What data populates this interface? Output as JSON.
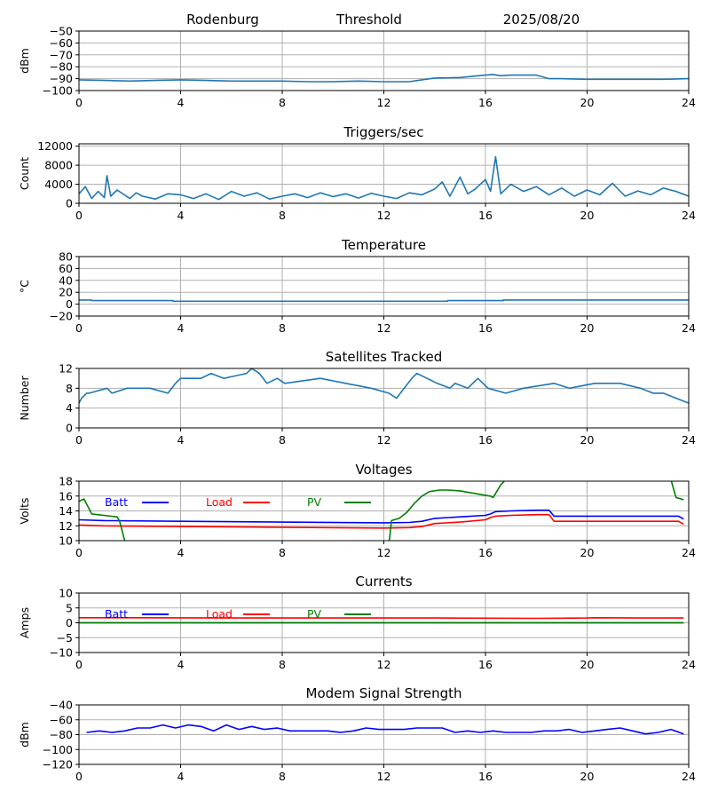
{
  "header": {
    "station": "Rodenburg",
    "mode": "Threshold",
    "date": "2025/08/20"
  },
  "chart_data": [
    {
      "id": "threshold",
      "type": "line",
      "title": "",
      "ylabel": "dBm",
      "x_ticks": [
        0,
        4,
        8,
        12,
        16,
        20,
        24
      ],
      "xlim": [
        0,
        24
      ],
      "ylim": [
        -100,
        -50
      ],
      "y_ticks": [
        -100,
        -90,
        -80,
        -70,
        -60,
        -50
      ],
      "grid": true,
      "series": [
        {
          "color": "#1f77b4",
          "x": [
            0,
            1,
            2,
            3,
            4,
            5,
            6,
            7,
            8,
            9,
            10,
            11,
            12,
            13,
            13.5,
            14,
            15,
            15.5,
            16,
            16.3,
            16.6,
            17,
            18,
            18.5,
            19,
            20,
            21,
            22,
            23,
            24
          ],
          "y": [
            -91,
            -91.5,
            -92,
            -91.5,
            -91,
            -91.5,
            -92,
            -92,
            -92,
            -92.5,
            -92.5,
            -92,
            -92.5,
            -92.5,
            -91,
            -89.5,
            -89,
            -88,
            -87,
            -86.5,
            -87.5,
            -87,
            -87,
            -90,
            -90,
            -90.5,
            -90.5,
            -90.5,
            -90.5,
            -90
          ]
        }
      ]
    },
    {
      "id": "triggers",
      "type": "line",
      "title": "Triggers/sec",
      "ylabel": "Count",
      "x_ticks": [
        0,
        4,
        8,
        12,
        16,
        20,
        24
      ],
      "xlim": [
        0,
        24
      ],
      "ylim": [
        0,
        12500
      ],
      "y_ticks": [
        0,
        4000,
        8000,
        12000
      ],
      "grid": true,
      "series": [
        {
          "color": "#1f77b4",
          "x": [
            0,
            0.25,
            0.5,
            0.75,
            1.0,
            1.1,
            1.25,
            1.5,
            2,
            2.25,
            2.5,
            3,
            3.5,
            4,
            4.5,
            5,
            5.5,
            6,
            6.5,
            7,
            7.5,
            8,
            8.5,
            9,
            9.5,
            10,
            10.5,
            11,
            11.5,
            12,
            12.5,
            13,
            13.5,
            14,
            14.3,
            14.6,
            15,
            15.3,
            15.6,
            16,
            16.2,
            16.4,
            16.6,
            17,
            17.5,
            18,
            18.5,
            19,
            19.5,
            20,
            20.5,
            21,
            21.5,
            22,
            22.5,
            23,
            23.5,
            24
          ],
          "y": [
            2000,
            3500,
            1000,
            2500,
            1200,
            5800,
            1500,
            2800,
            1000,
            2200,
            1500,
            900,
            2000,
            1800,
            1000,
            2000,
            800,
            2500,
            1500,
            2200,
            900,
            1500,
            2000,
            1200,
            2200,
            1400,
            2000,
            1100,
            2100,
            1500,
            1000,
            2200,
            1800,
            3000,
            4500,
            1500,
            5500,
            2000,
            3000,
            5000,
            2500,
            9800,
            2000,
            4000,
            2500,
            3500,
            1800,
            3200,
            1500,
            2800,
            1800,
            4200,
            1500,
            2600,
            1800,
            3200,
            2500,
            1500
          ]
        }
      ]
    },
    {
      "id": "temperature",
      "type": "line",
      "title": "Temperature",
      "ylabel": "°C",
      "x_ticks": [
        0,
        4,
        8,
        12,
        16,
        20,
        24
      ],
      "xlim": [
        0,
        24
      ],
      "ylim": [
        -20,
        80
      ],
      "y_ticks": [
        -20,
        0,
        20,
        40,
        60,
        80
      ],
      "grid": true,
      "series": [
        {
          "color": "#1f77b4",
          "x": [
            0,
            0.5,
            0.5,
            3.7,
            3.7,
            14.5,
            14.5,
            16.7,
            16.7,
            24
          ],
          "y": [
            7,
            7,
            6,
            6,
            5,
            5,
            6,
            6,
            7,
            7
          ]
        }
      ]
    },
    {
      "id": "satellites",
      "type": "line",
      "title": "Satellites Tracked",
      "ylabel": "Number",
      "x_ticks": [
        0,
        4,
        8,
        12,
        16,
        20,
        24
      ],
      "xlim": [
        0,
        24
      ],
      "ylim": [
        0,
        12
      ],
      "y_ticks": [
        0,
        4,
        8,
        12
      ],
      "grid": true,
      "series": [
        {
          "color": "#1f77b4",
          "x": [
            0,
            0.1,
            0.3,
            0.4,
            1.1,
            1.3,
            1.9,
            2.8,
            3.5,
            3.8,
            4.0,
            4.3,
            4.8,
            5.2,
            5.7,
            6.6,
            6.8,
            7.1,
            7.4,
            7.8,
            8.1,
            9.5,
            10.5,
            11.5,
            12.2,
            12.5,
            12.8,
            13.1,
            13.3,
            13.7,
            14.1,
            14.6,
            14.8,
            15.3,
            15.7,
            16.1,
            16.8,
            17.5,
            18.7,
            19.3,
            20.3,
            21.3,
            22.1,
            22.6,
            23.0,
            23.5,
            24
          ],
          "y": [
            5,
            6,
            7,
            7,
            8,
            7,
            8,
            8,
            7,
            9,
            10,
            10,
            10,
            11,
            10,
            11,
            12,
            11,
            9,
            10,
            9,
            10,
            9,
            8,
            7,
            6,
            8,
            10,
            11,
            10,
            9,
            8,
            9,
            8,
            10,
            8,
            7,
            8,
            9,
            8,
            9,
            9,
            8,
            7,
            7,
            6,
            5
          ]
        }
      ]
    },
    {
      "id": "voltages",
      "type": "line",
      "title": "Voltages",
      "ylabel": "Volts",
      "x_ticks": [
        0,
        4,
        8,
        12,
        16,
        20,
        24
      ],
      "xlim": [
        0,
        24
      ],
      "ylim": [
        10,
        18
      ],
      "y_ticks": [
        10,
        12,
        14,
        16,
        18
      ],
      "grid": true,
      "legend": {
        "position": "top-left",
        "inline": true
      },
      "series": [
        {
          "name": "Batt",
          "color": "#0000ff",
          "x": [
            0,
            1,
            4,
            8,
            12,
            13,
            13.5,
            14,
            15,
            16,
            16.2,
            16.4,
            17,
            18,
            18.5,
            18.7,
            20,
            22,
            23.6,
            23.8
          ],
          "y": [
            12.8,
            12.7,
            12.6,
            12.5,
            12.4,
            12.45,
            12.6,
            13.0,
            13.2,
            13.4,
            13.6,
            13.9,
            14.0,
            14.1,
            14.1,
            13.3,
            13.3,
            13.3,
            13.3,
            12.9
          ]
        },
        {
          "name": "Load",
          "color": "#ff0000",
          "x": [
            0,
            1,
            4,
            8,
            12,
            13,
            13.5,
            14,
            15,
            16,
            16.2,
            16.4,
            17,
            18,
            18.5,
            18.7,
            20,
            22,
            23.6,
            23.8
          ],
          "y": [
            12.1,
            12.0,
            11.9,
            11.8,
            11.7,
            11.75,
            11.9,
            12.3,
            12.5,
            12.8,
            13.1,
            13.3,
            13.4,
            13.5,
            13.5,
            12.6,
            12.6,
            12.6,
            12.6,
            12.2
          ]
        },
        {
          "name": "PV",
          "color": "#008000",
          "x": [
            0,
            0.2,
            0.5,
            1.5,
            1.6,
            1.8,
            1.85,
            12.2,
            12.3,
            12.6,
            12.9,
            13.2,
            13.5,
            13.8,
            14.2,
            14.5,
            15,
            15.5,
            16,
            16.2,
            16.3,
            16.6,
            16.8,
            23.3,
            23.5,
            23.8
          ],
          "y": [
            15.3,
            15.6,
            13.6,
            13.2,
            12.6,
            10.0,
            9.5,
            9.5,
            12.7,
            13.0,
            13.8,
            15.0,
            16.0,
            16.6,
            16.8,
            16.8,
            16.7,
            16.4,
            16.1,
            16.0,
            15.8,
            17.5,
            18.2,
            18.2,
            15.8,
            15.5
          ]
        }
      ]
    },
    {
      "id": "currents",
      "type": "line",
      "title": "Currents",
      "ylabel": "Amps",
      "x_ticks": [
        0,
        4,
        8,
        12,
        16,
        20,
        24
      ],
      "xlim": [
        0,
        24
      ],
      "ylim": [
        -10,
        10
      ],
      "y_ticks": [
        -10,
        -5,
        0,
        5,
        10
      ],
      "grid": true,
      "legend": {
        "position": "top-left",
        "inline": true
      },
      "series": [
        {
          "name": "Batt",
          "color": "#0000ff",
          "x": [
            0,
            23.8
          ],
          "y": [
            0,
            0
          ]
        },
        {
          "name": "Load",
          "color": "#ff0000",
          "x": [
            0,
            2,
            6,
            10,
            14,
            18,
            20,
            20.3,
            22,
            23.8
          ],
          "y": [
            1.7,
            1.7,
            1.6,
            1.6,
            1.6,
            1.5,
            1.6,
            1.7,
            1.6,
            1.6
          ]
        },
        {
          "name": "PV",
          "color": "#008000",
          "x": [
            0,
            23.8
          ],
          "y": [
            0,
            0
          ]
        }
      ]
    },
    {
      "id": "modem",
      "type": "line",
      "title": "Modem Signal Strength",
      "ylabel": "dBm",
      "x_ticks": [
        0,
        4,
        8,
        12,
        16,
        20,
        24
      ],
      "xlim": [
        0,
        24
      ],
      "ylim": [
        -120,
        -40
      ],
      "y_ticks": [
        -120,
        -100,
        -80,
        -60,
        -40
      ],
      "grid": true,
      "series": [
        {
          "color": "#0000ff",
          "x": [
            0.3,
            0.8,
            1.3,
            1.8,
            2.3,
            2.8,
            3.3,
            3.8,
            4.3,
            4.8,
            5.3,
            5.8,
            6.3,
            6.8,
            7.3,
            7.8,
            8.3,
            8.8,
            9.3,
            9.8,
            10.3,
            10.8,
            11.3,
            11.8,
            12.3,
            12.8,
            13.3,
            13.8,
            14.3,
            14.8,
            15.3,
            15.8,
            16.3,
            16.8,
            17.3,
            17.8,
            18.3,
            18.8,
            19.3,
            19.8,
            20.3,
            20.8,
            21.3,
            21.8,
            22.3,
            22.8,
            23.3,
            23.8
          ],
          "y": [
            -77,
            -75,
            -77,
            -75,
            -71,
            -71,
            -67,
            -71,
            -67,
            -69,
            -75,
            -67,
            -73,
            -69,
            -73,
            -71,
            -75,
            -75,
            -75,
            -75,
            -77,
            -75,
            -71,
            -73,
            -73,
            -73,
            -71,
            -71,
            -71,
            -77,
            -75,
            -77,
            -75,
            -77,
            -77,
            -77,
            -75,
            -75,
            -73,
            -77,
            -75,
            -73,
            -71,
            -75,
            -79,
            -77,
            -73,
            -79
          ]
        }
      ]
    }
  ]
}
